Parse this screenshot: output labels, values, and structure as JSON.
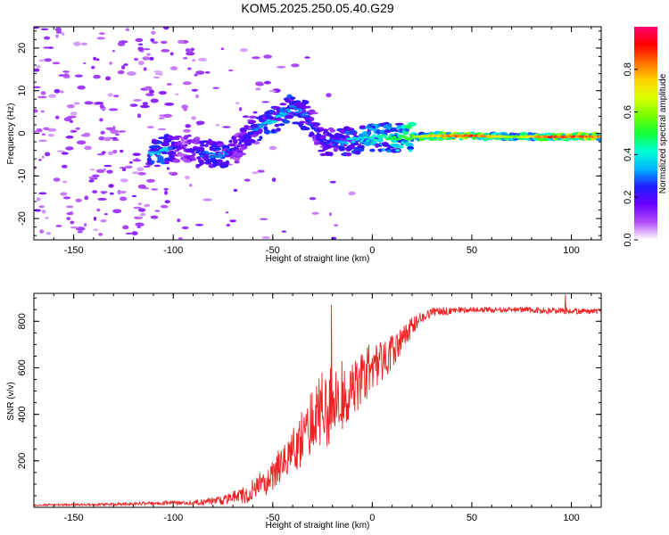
{
  "figure": {
    "title": "KOM5.2025.250.05.40.G29"
  },
  "chart_data": [
    {
      "type": "heatmap",
      "title": "",
      "xlabel": "Height of straight line (km)",
      "ylabel": "Frequency (Hz)",
      "xlim": [
        -170,
        115
      ],
      "ylim": [
        -25,
        25
      ],
      "xticks": [
        -150,
        -100,
        -50,
        0,
        50,
        100
      ],
      "yticks": [
        -20,
        -10,
        0,
        10,
        20
      ],
      "colorbar": {
        "label": "Normalized spectral amplitude",
        "range": [
          0,
          1
        ],
        "ticks": [
          "0.0",
          "0.2",
          "0.4",
          "0.6",
          "0.8"
        ],
        "colors": [
          "#ffffff",
          "#b04ef7",
          "#6a00ff",
          "#1e1eff",
          "#00b4ff",
          "#00ffd2",
          "#14ff3c",
          "#78ff00",
          "#dcff00",
          "#ffd200",
          "#ff6e00",
          "#ff0000",
          "#ff006e"
        ]
      },
      "frequency_trace": [
        {
          "x": -112,
          "f": -5,
          "amp": 0.35
        },
        {
          "x": -105,
          "f": -4,
          "amp": 0.4
        },
        {
          "x": -95,
          "f": -3,
          "amp": 0.15
        },
        {
          "x": -85,
          "f": -5,
          "amp": 0.3
        },
        {
          "x": -75,
          "f": -5,
          "amp": 0.35
        },
        {
          "x": -68,
          "f": -3,
          "amp": 0.2
        },
        {
          "x": -60,
          "f": 1,
          "amp": 0.3
        },
        {
          "x": -50,
          "f": 3,
          "amp": 0.4
        },
        {
          "x": -40,
          "f": 6,
          "amp": 0.35
        },
        {
          "x": -33,
          "f": 4,
          "amp": 0.3
        },
        {
          "x": -25,
          "f": -2,
          "amp": 0.25
        },
        {
          "x": -15,
          "f": -2,
          "amp": 0.35
        },
        {
          "x": 0,
          "f": -1,
          "amp": 0.45
        },
        {
          "x": 15,
          "f": -1,
          "amp": 0.55
        },
        {
          "x": 30,
          "f": -0.6,
          "amp": 0.8
        },
        {
          "x": 50,
          "f": -0.6,
          "amp": 0.95
        },
        {
          "x": 70,
          "f": -0.8,
          "amp": 0.6
        },
        {
          "x": 90,
          "f": -0.8,
          "amp": 0.95
        },
        {
          "x": 115,
          "f": -0.8,
          "amp": 0.85
        }
      ]
    },
    {
      "type": "line",
      "title": "",
      "xlabel": "Height of straight line (km)",
      "ylabel": "SNR (v/v)",
      "xlim": [
        -170,
        115
      ],
      "ylim": [
        0,
        920
      ],
      "xticks": [
        -150,
        -100,
        -50,
        0,
        50,
        100
      ],
      "yticks": [
        200,
        400,
        600,
        800
      ],
      "series": [
        {
          "name": "SNR",
          "color": "#ee2222",
          "x": [
            -170,
            -140,
            -110,
            -90,
            -75,
            -65,
            -55,
            -45,
            -35,
            -28,
            -22,
            -15,
            -8,
            0,
            8,
            15,
            22,
            30,
            40,
            50,
            70,
            90,
            115
          ],
          "y": [
            10,
            12,
            18,
            20,
            30,
            50,
            100,
            190,
            300,
            390,
            440,
            480,
            540,
            600,
            650,
            720,
            800,
            840,
            845,
            850,
            850,
            845,
            840
          ],
          "spread": [
            4,
            5,
            8,
            10,
            20,
            40,
            60,
            80,
            120,
            160,
            180,
            150,
            130,
            110,
            80,
            55,
            35,
            20,
            15,
            12,
            12,
            15,
            12
          ],
          "peaks": [
            {
              "x": -20.5,
              "y": 870
            },
            {
              "x": 97,
              "y": 915
            }
          ]
        }
      ]
    }
  ]
}
